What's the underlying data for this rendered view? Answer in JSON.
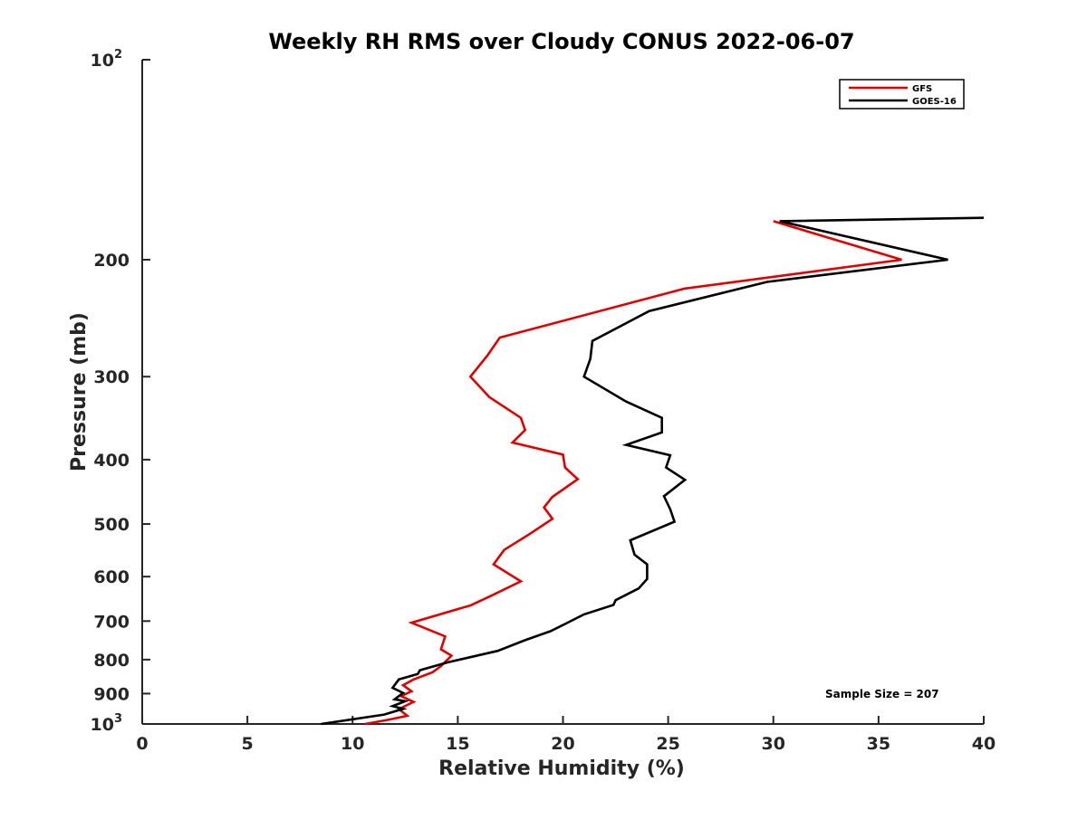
{
  "chart_data": {
    "type": "line",
    "title": "Weekly RH RMS over Cloudy CONUS 2022-06-07",
    "xlabel": "Relative Humidity (%)",
    "ylabel": "Pressure (mb)",
    "xlim": [
      0,
      40
    ],
    "ylim": [
      100,
      1000
    ],
    "y_scale": "log",
    "y_reversed": true,
    "x_ticks": [
      "0",
      "5",
      "10",
      "15",
      "20",
      "25",
      "30",
      "35",
      "40"
    ],
    "y_ticks": [
      {
        "value": 100,
        "base": "10",
        "exp": "2"
      },
      {
        "value": 200,
        "label": "200"
      },
      {
        "value": 300,
        "label": "300"
      },
      {
        "value": 400,
        "label": "400"
      },
      {
        "value": 500,
        "label": "500"
      },
      {
        "value": 600,
        "label": "600"
      },
      {
        "value": 700,
        "label": "700"
      },
      {
        "value": 800,
        "label": "800"
      },
      {
        "value": 900,
        "label": "900"
      },
      {
        "value": 1000,
        "base": "10",
        "exp": "3"
      }
    ],
    "grid": false,
    "legend_position": "top-right",
    "annotation": "Sample Size = 207",
    "series": [
      {
        "name": "GFS",
        "color": "#e00000",
        "points": [
          [
            30.0,
            175
          ],
          [
            36.1,
            200
          ],
          [
            25.8,
            221
          ],
          [
            17.0,
            262
          ],
          [
            16.4,
            279
          ],
          [
            15.6,
            300
          ],
          [
            16.5,
            322
          ],
          [
            18.0,
            346
          ],
          [
            18.2,
            361
          ],
          [
            17.6,
            377
          ],
          [
            20.0,
            393
          ],
          [
            20.1,
            411
          ],
          [
            20.7,
            428
          ],
          [
            19.5,
            455
          ],
          [
            19.1,
            472
          ],
          [
            19.5,
            491
          ],
          [
            18.4,
            518
          ],
          [
            17.2,
            547
          ],
          [
            16.7,
            575
          ],
          [
            18.0,
            610
          ],
          [
            16.6,
            641
          ],
          [
            15.6,
            663
          ],
          [
            12.8,
            704
          ],
          [
            14.4,
            738
          ],
          [
            14.2,
            772
          ],
          [
            14.7,
            789
          ],
          [
            14.2,
            818
          ],
          [
            13.8,
            836
          ],
          [
            12.9,
            857
          ],
          [
            12.4,
            874
          ],
          [
            12.8,
            893
          ],
          [
            12.3,
            908
          ],
          [
            12.9,
            926
          ],
          [
            12.2,
            950
          ],
          [
            12.6,
            972
          ],
          [
            11.8,
            984
          ],
          [
            10.6,
            1000
          ]
        ]
      },
      {
        "name": "GOES-16",
        "color": "#000000",
        "points": [
          [
            40.0,
            173
          ],
          [
            30.3,
            175
          ],
          [
            38.3,
            200
          ],
          [
            29.7,
            216
          ],
          [
            24.1,
            239
          ],
          [
            21.4,
            265
          ],
          [
            21.3,
            282
          ],
          [
            21.0,
            300
          ],
          [
            23.0,
            327
          ],
          [
            24.7,
            346
          ],
          [
            24.7,
            364
          ],
          [
            23.0,
            380
          ],
          [
            25.1,
            394
          ],
          [
            24.9,
            411
          ],
          [
            25.8,
            429
          ],
          [
            24.8,
            454
          ],
          [
            25.1,
            475
          ],
          [
            25.3,
            496
          ],
          [
            23.2,
            529
          ],
          [
            23.4,
            556
          ],
          [
            24.0,
            575
          ],
          [
            24.0,
            605
          ],
          [
            23.6,
            625
          ],
          [
            22.5,
            651
          ],
          [
            22.4,
            662
          ],
          [
            21.0,
            684
          ],
          [
            20.1,
            707
          ],
          [
            19.4,
            725
          ],
          [
            18.2,
            748
          ],
          [
            16.9,
            776
          ],
          [
            14.5,
            808
          ],
          [
            13.2,
            830
          ],
          [
            13.1,
            841
          ],
          [
            12.2,
            857
          ],
          [
            11.9,
            882
          ],
          [
            12.4,
            898
          ],
          [
            12.0,
            918
          ],
          [
            12.5,
            924
          ],
          [
            11.9,
            940
          ],
          [
            12.4,
            949
          ],
          [
            11.5,
            968
          ],
          [
            8.5,
            1000
          ]
        ]
      }
    ]
  }
}
